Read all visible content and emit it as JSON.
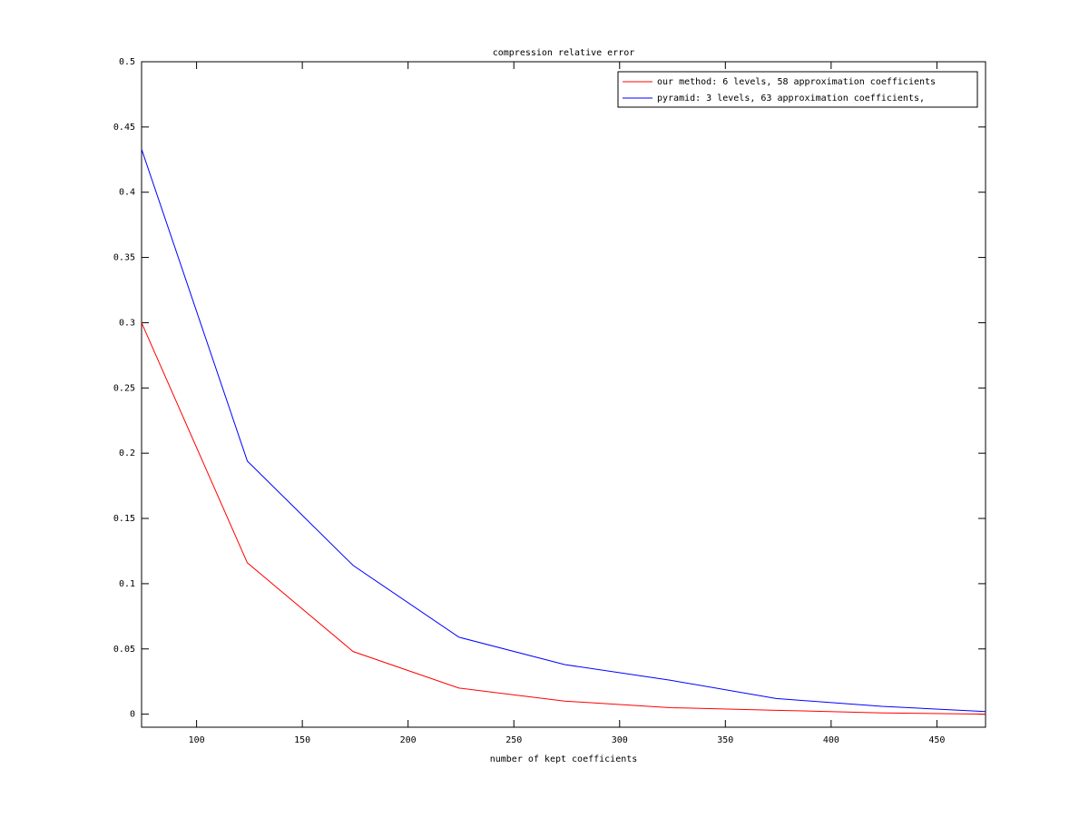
{
  "chart_data": {
    "type": "line",
    "title": "compression relative error",
    "x_label": "number of kept coefficients",
    "x": [
      74,
      124,
      174,
      224,
      274,
      324,
      374,
      424,
      473
    ],
    "series": [
      {
        "name": "our method: 6 levels, 58 approximation coefficients",
        "color": "#ff0000",
        "values": [
          0.3,
          0.116,
          0.048,
          0.02,
          0.01,
          0.005,
          0.003,
          0.001,
          0.0
        ]
      },
      {
        "name": "pyramid: 3 levels, 63 approximation coefficients,",
        "color": "#0000ff",
        "values": [
          0.433,
          0.194,
          0.114,
          0.059,
          0.038,
          0.026,
          0.012,
          0.006,
          0.002
        ]
      }
    ],
    "xlim": [
      74,
      473
    ],
    "xticks": [
      100,
      150,
      200,
      250,
      300,
      350,
      400,
      450
    ],
    "ylim": [
      -0.01,
      0.5
    ],
    "yticks": [
      0,
      0.05,
      0.1,
      0.15,
      0.2,
      0.25,
      0.3,
      0.35,
      0.4,
      0.45,
      0.5
    ],
    "legend": "upper right",
    "grid": false
  }
}
